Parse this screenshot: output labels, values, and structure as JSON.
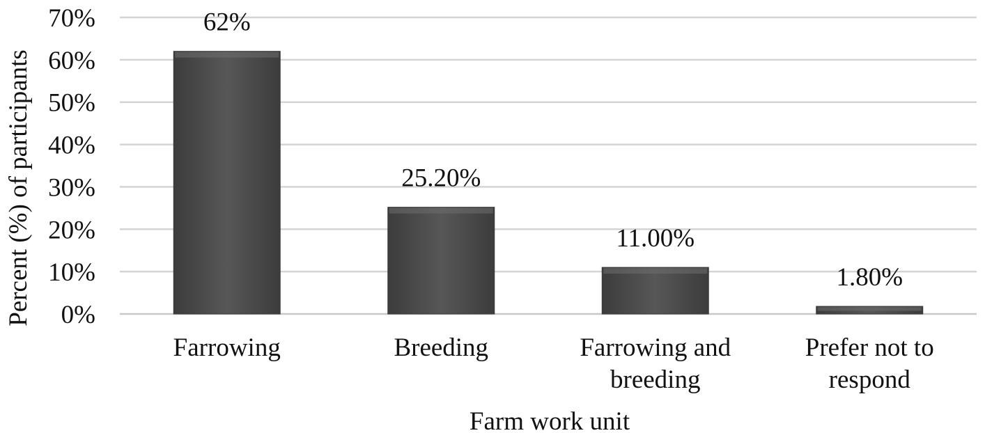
{
  "chart_data": {
    "type": "bar",
    "title": "",
    "xlabel": "Farm work unit",
    "ylabel": "Percent  (%) of participants",
    "categories": [
      [
        "Farrowing"
      ],
      [
        "Breeding"
      ],
      [
        "Farrowing and",
        "breeding"
      ],
      [
        "Prefer not to",
        "respond"
      ]
    ],
    "values": [
      62,
      25.2,
      11.0,
      1.8
    ],
    "data_labels": [
      "62%",
      "25.20%",
      "11.00%",
      "1.80%"
    ],
    "ylim": [
      0,
      70
    ],
    "y_ticks": [
      0,
      10,
      20,
      30,
      40,
      50,
      60,
      70
    ],
    "y_tick_labels": [
      "0%",
      "10%",
      "20%",
      "30%",
      "40%",
      "50%",
      "60%",
      "70%"
    ],
    "grid": true,
    "legend": "none",
    "colors": {
      "bar": "#4d4d4d",
      "bar_edge": "#3a3a3a",
      "grid": "#d4d4d4",
      "axis": "#c8c8c8"
    }
  }
}
